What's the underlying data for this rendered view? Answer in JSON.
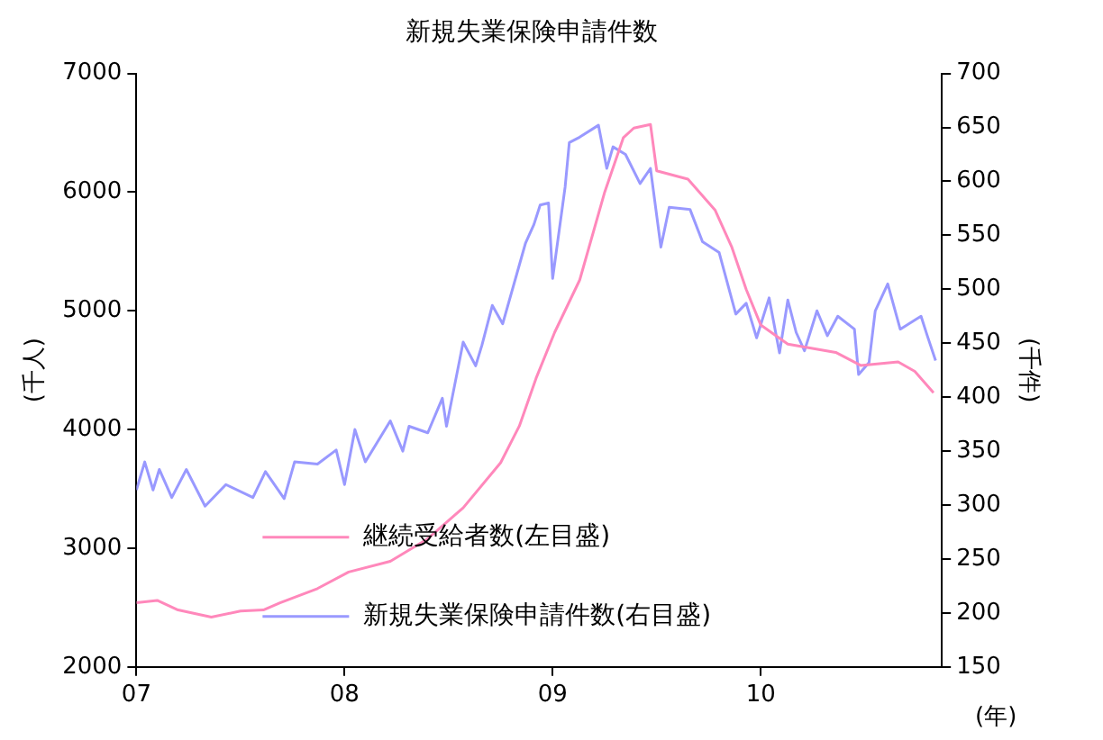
{
  "chart_data": {
    "type": "line",
    "title": "新規失業保険申請件数",
    "ylabel": "(千人)",
    "y2label": "(千件)",
    "xlabel": "(年)",
    "xlim": [
      2007,
      2010.87
    ],
    "xticks": [
      {
        "value": 2007,
        "label": "07"
      },
      {
        "value": 2008,
        "label": "08"
      },
      {
        "value": 2009,
        "label": "09"
      },
      {
        "value": 2010,
        "label": "10"
      }
    ],
    "ylim": [
      2000,
      7000
    ],
    "yticks": [
      2000,
      3000,
      4000,
      5000,
      6000,
      7000
    ],
    "y2lim": [
      150,
      700
    ],
    "y2ticks": [
      150,
      200,
      250,
      300,
      350,
      400,
      450,
      500,
      550,
      600,
      650,
      700
    ],
    "legend": "bottom",
    "grid": false,
    "marker": "none",
    "line_style": "solid",
    "series": [
      {
        "name": "継続受給者数(左目盛)",
        "color": "#ff88bb",
        "x": [
          2007.0,
          2007.1,
          2007.2,
          2007.36,
          2007.5,
          2007.61,
          2007.69,
          2007.87,
          2008.02,
          2008.22,
          2008.4,
          2008.57,
          2008.75,
          2008.84,
          2008.92,
          2009.01,
          2009.13,
          2009.25,
          2009.34,
          2009.39,
          2009.47,
          2009.5,
          2009.65,
          2009.78,
          2009.86,
          2009.93,
          2010.0,
          2010.13,
          2010.36,
          2010.48,
          2010.66,
          2010.74,
          2010.83
        ],
        "values": [
          2540,
          2560,
          2480,
          2420,
          2470,
          2480,
          2540,
          2660,
          2800,
          2890,
          3080,
          3340,
          3720,
          4030,
          4430,
          4820,
          5260,
          6000,
          6460,
          6540,
          6570,
          6180,
          6110,
          5850,
          5540,
          5180,
          4880,
          4720,
          4650,
          4540,
          4570,
          4490,
          4310
        ]
      },
      {
        "name": "新規失業保険申請件数(右目盛)",
        "color": "#9999ff",
        "axis": "y2",
        "x": [
          2007.0,
          2007.04,
          2007.08,
          2007.11,
          2007.17,
          2007.24,
          2007.33,
          2007.43,
          2007.56,
          2007.62,
          2007.71,
          2007.76,
          2007.87,
          2007.96,
          2008.0,
          2008.05,
          2008.1,
          2008.22,
          2008.28,
          2008.31,
          2008.4,
          2008.47,
          2008.49,
          2008.57,
          2008.63,
          2008.66,
          2008.71,
          2008.76,
          2008.87,
          2008.91,
          2008.94,
          2008.98,
          2009.0,
          2009.06,
          2009.08,
          2009.13,
          2009.22,
          2009.26,
          2009.29,
          2009.35,
          2009.42,
          2009.47,
          2009.52,
          2009.56,
          2009.66,
          2009.72,
          2009.8,
          2009.88,
          2009.93,
          2009.98,
          2010.04,
          2010.09,
          2010.13,
          2010.17,
          2010.21,
          2010.27,
          2010.32,
          2010.37,
          2010.45,
          2010.47,
          2010.52,
          2010.55,
          2010.61,
          2010.67,
          2010.77,
          2010.8,
          2010.84
        ],
        "values": [
          314,
          340,
          314,
          333,
          307,
          333,
          299,
          319,
          307,
          331,
          306,
          340,
          338,
          351,
          319,
          370,
          340,
          378,
          350,
          373,
          367,
          399,
          373,
          451,
          429,
          448,
          485,
          468,
          543,
          560,
          578,
          580,
          510,
          595,
          636,
          641,
          652,
          612,
          632,
          625,
          598,
          612,
          539,
          576,
          574,
          544,
          534,
          477,
          487,
          455,
          492,
          441,
          490,
          460,
          443,
          480,
          457,
          475,
          463,
          421,
          432,
          480,
          505,
          463,
          475,
          457,
          434
        ]
      }
    ]
  }
}
